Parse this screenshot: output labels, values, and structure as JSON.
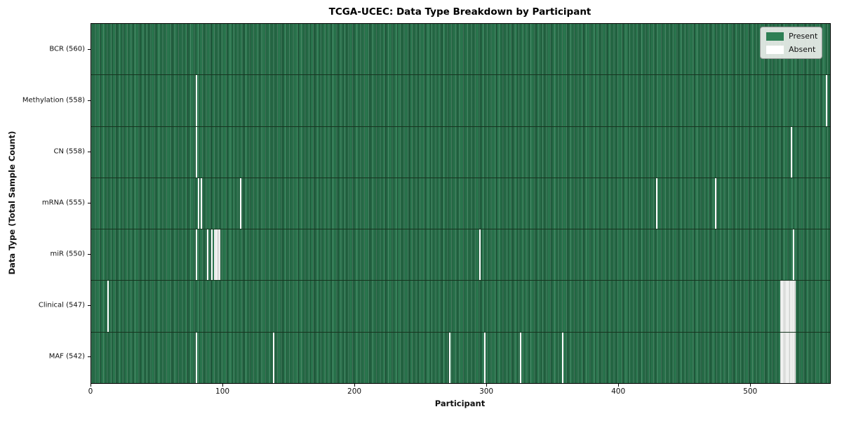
{
  "chart_data": {
    "type": "heatmap",
    "title": "TCGA-UCEC: Data Type Breakdown by Participant",
    "xlabel": "Participant",
    "ylabel": "Data Type (Total Sample Count)",
    "x_ticks": [
      0,
      100,
      200,
      300,
      400,
      500
    ],
    "xlim": [
      0,
      560
    ],
    "n_participants": 560,
    "grid": "row-separators-only",
    "legend": {
      "position": "upper right",
      "entries": [
        {
          "label": "Present",
          "color": "#2d7f54"
        },
        {
          "label": "Absent",
          "color": "#ffffff"
        }
      ]
    },
    "colors": {
      "present": "#2d7f54",
      "present_cell_edge": "#1c5536",
      "absent": "#ffffff",
      "row_separator": "#16341f"
    },
    "rows": [
      {
        "label": "BCR (560)",
        "data_type": "BCR",
        "total_sample_count": 560,
        "absent_participants": []
      },
      {
        "label": "Methylation (558)",
        "data_type": "Methylation",
        "total_sample_count": 558,
        "absent_participants": [
          79,
          557
        ]
      },
      {
        "label": "CN (558)",
        "data_type": "CN",
        "total_sample_count": 558,
        "absent_participants": [
          79,
          530
        ]
      },
      {
        "label": "mRNA (555)",
        "data_type": "mRNA",
        "total_sample_count": 555,
        "absent_participants": [
          81,
          83,
          113,
          428,
          473
        ]
      },
      {
        "label": "miR (550)",
        "data_type": "miR",
        "total_sample_count": 550,
        "absent_participants": [
          79,
          88,
          91,
          93,
          94,
          95,
          96,
          97,
          294,
          532
        ]
      },
      {
        "label": "Clinical (547)",
        "data_type": "Clinical",
        "total_sample_count": 547,
        "absent_participants": [
          12,
          522,
          523,
          524,
          525,
          526,
          527,
          528,
          529,
          530,
          531,
          532,
          533
        ]
      },
      {
        "label": "MAF (542)",
        "data_type": "MAF",
        "total_sample_count": 542,
        "absent_participants": [
          79,
          138,
          271,
          298,
          325,
          357,
          522,
          523,
          524,
          525,
          526,
          527,
          528,
          529,
          530,
          531,
          532,
          533
        ]
      }
    ]
  }
}
